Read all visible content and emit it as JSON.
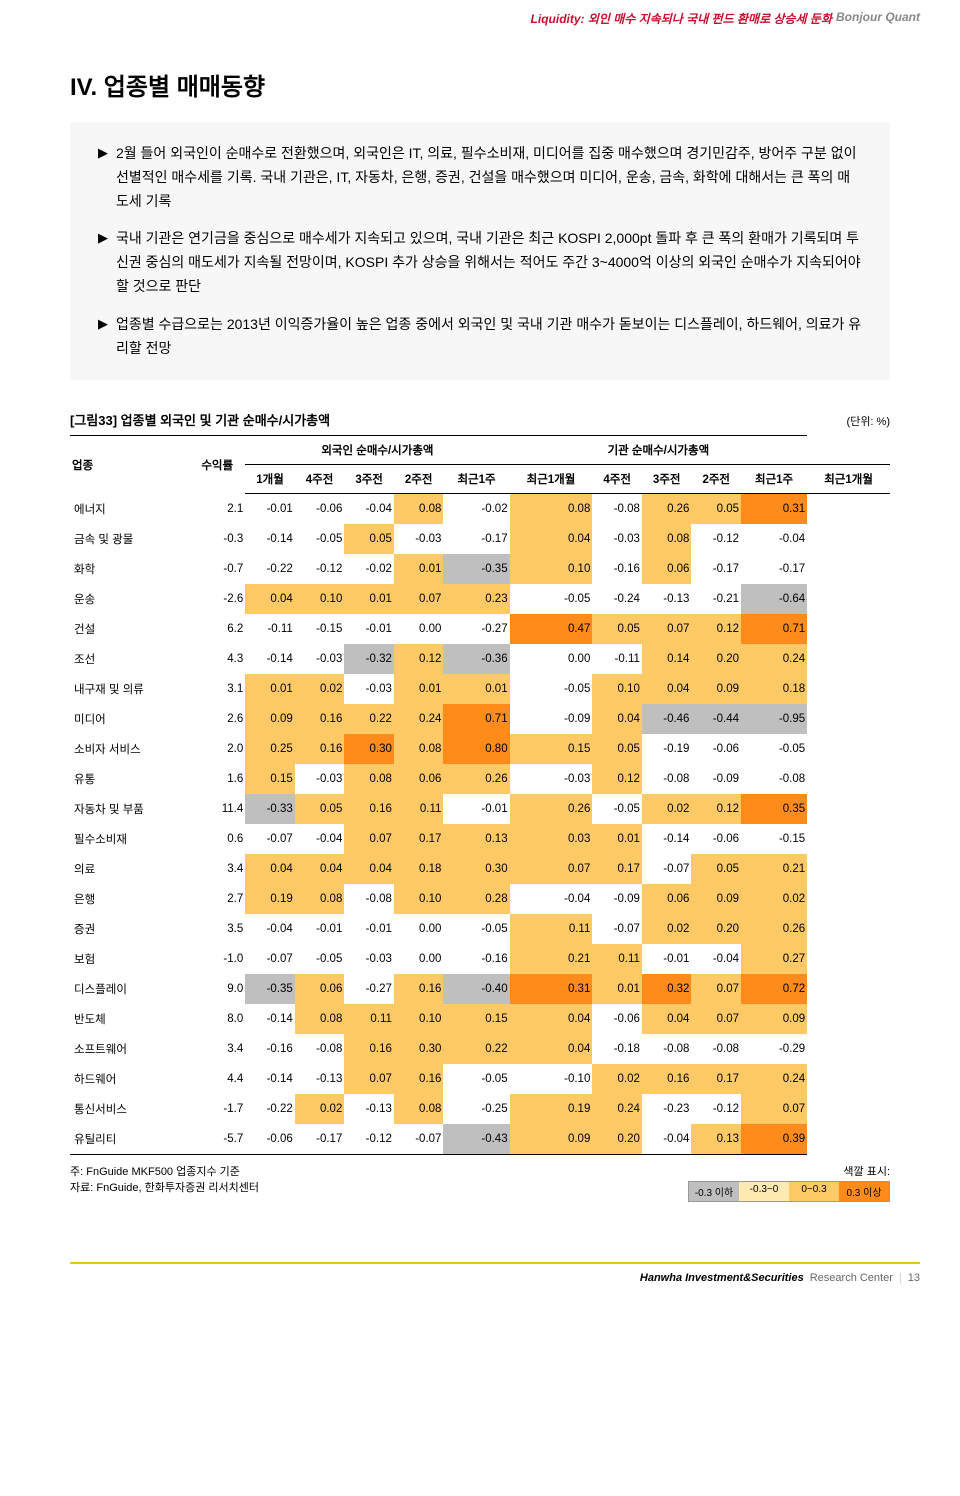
{
  "header": {
    "left": "Liquidity: 외인 매수 지속되나 국내 펀드 환매로 상승세 둔화",
    "right": "Bonjour Quant"
  },
  "section": {
    "title": "IV. 업종별 매매동향",
    "bullets": [
      "2월 들어 외국인이 순매수로 전환했으며, 외국인은 IT, 의료, 필수소비재, 미디어를 집중 매수했으며 경기민감주, 방어주 구분 없이 선별적인 매수세를 기록. 국내 기관은, IT, 자동차, 은행, 증권, 건설을 매수했으며 미디어, 운송, 금속, 화학에 대해서는 큰 폭의 매도세 기록",
      "국내 기관은 연기금을 중심으로 매수세가 지속되고 있으며, 국내 기관은 최근 KOSPI 2,000pt 돌파 후 큰 폭의 환매가 기록되며 투신권 중심의 매도세가 지속될 전망이며, KOSPI 추가 상승을 위해서는 적어도 주간 3~4000억 이상의 외국인 순매수가 지속되어야 할 것으로 판단",
      "업종별 수급으로는 2013년 이익증가율이 높은 업종 중에서 외국인 및 국내 기관 매수가 돋보이는 디스플레이, 하드웨어, 의료가 유리할 전망"
    ]
  },
  "table": {
    "caption": "[그림33]  업종별 외국인 및 기관 순매수/시가총액",
    "unit": "(단위: %)",
    "head1": {
      "c0": "업종",
      "c1": "수익률",
      "c2": "외국인 순매수/시가총액",
      "c3": "기관 순매수/시가총액"
    },
    "head2": {
      "c0": "1개월",
      "c1": "4주전",
      "c2": "3주전",
      "c3": "2주전",
      "c4": "최근1주",
      "c5": "최근1개월",
      "c6": "4주전",
      "c7": "3주전",
      "c8": "2주전",
      "c9": "최근1주",
      "c10": "최근1개월"
    },
    "colors": {
      "neg_strong": "#bfbfbf",
      "neg_weak": "#ffe9b3",
      "pos_weak": "#ffc966",
      "pos_strong": "#ff8c1a",
      "none": "transparent"
    },
    "rows": [
      {
        "label": "에너지",
        "v": [
          "2.1",
          "-0.01",
          "-0.06",
          "-0.04",
          "0.08",
          "-0.02",
          "0.08",
          "-0.08",
          "0.26",
          "0.05",
          "0.31"
        ],
        "c": [
          "",
          "",
          "",
          "",
          "pos_weak",
          "",
          "pos_weak",
          "",
          "pos_weak",
          "pos_weak",
          "pos_strong"
        ]
      },
      {
        "label": "금속 및 광물",
        "v": [
          "-0.3",
          "-0.14",
          "-0.05",
          "0.05",
          "-0.03",
          "-0.17",
          "0.04",
          "-0.03",
          "0.08",
          "-0.12",
          "-0.04"
        ],
        "c": [
          "",
          "",
          "",
          "pos_weak",
          "",
          "",
          "pos_weak",
          "",
          "pos_weak",
          "",
          ""
        ]
      },
      {
        "label": "화학",
        "v": [
          "-0.7",
          "-0.22",
          "-0.12",
          "-0.02",
          "0.01",
          "-0.35",
          "0.10",
          "-0.16",
          "0.06",
          "-0.17",
          "-0.17"
        ],
        "c": [
          "",
          "",
          "",
          "",
          "pos_weak",
          "neg_strong",
          "pos_weak",
          "",
          "pos_weak",
          "",
          ""
        ]
      },
      {
        "label": "운송",
        "v": [
          "-2.6",
          "0.04",
          "0.10",
          "0.01",
          "0.07",
          "0.23",
          "-0.05",
          "-0.24",
          "-0.13",
          "-0.21",
          "-0.64"
        ],
        "c": [
          "",
          "pos_weak",
          "pos_weak",
          "pos_weak",
          "pos_weak",
          "pos_weak",
          "",
          "",
          "",
          "",
          "neg_strong"
        ]
      },
      {
        "label": "건설",
        "v": [
          "6.2",
          "-0.11",
          "-0.15",
          "-0.01",
          "0.00",
          "-0.27",
          "0.47",
          "0.05",
          "0.07",
          "0.12",
          "0.71"
        ],
        "c": [
          "",
          "",
          "",
          "",
          "",
          "",
          "pos_strong",
          "pos_weak",
          "pos_weak",
          "pos_weak",
          "pos_strong"
        ]
      },
      {
        "label": "조선",
        "v": [
          "4.3",
          "-0.14",
          "-0.03",
          "-0.32",
          "0.12",
          "-0.36",
          "0.00",
          "-0.11",
          "0.14",
          "0.20",
          "0.24"
        ],
        "c": [
          "",
          "",
          "",
          "neg_strong",
          "pos_weak",
          "neg_strong",
          "",
          "",
          "pos_weak",
          "pos_weak",
          "pos_weak"
        ]
      },
      {
        "label": "내구재 및 의류",
        "v": [
          "3.1",
          "0.01",
          "0.02",
          "-0.03",
          "0.01",
          "0.01",
          "-0.05",
          "0.10",
          "0.04",
          "0.09",
          "0.18"
        ],
        "c": [
          "",
          "pos_weak",
          "pos_weak",
          "",
          "pos_weak",
          "pos_weak",
          "",
          "pos_weak",
          "pos_weak",
          "pos_weak",
          "pos_weak"
        ]
      },
      {
        "label": "미디어",
        "v": [
          "2.6",
          "0.09",
          "0.16",
          "0.22",
          "0.24",
          "0.71",
          "-0.09",
          "0.04",
          "-0.46",
          "-0.44",
          "-0.95"
        ],
        "c": [
          "",
          "pos_weak",
          "pos_weak",
          "pos_weak",
          "pos_weak",
          "pos_strong",
          "",
          "pos_weak",
          "neg_strong",
          "neg_strong",
          "neg_strong"
        ]
      },
      {
        "label": "소비자 서비스",
        "v": [
          "2.0",
          "0.25",
          "0.16",
          "0.30",
          "0.08",
          "0.80",
          "0.15",
          "0.05",
          "-0.19",
          "-0.06",
          "-0.05"
        ],
        "c": [
          "",
          "pos_weak",
          "pos_weak",
          "pos_strong",
          "pos_weak",
          "pos_strong",
          "pos_weak",
          "pos_weak",
          "",
          "",
          ""
        ]
      },
      {
        "label": "유통",
        "v": [
          "1.6",
          "0.15",
          "-0.03",
          "0.08",
          "0.06",
          "0.26",
          "-0.03",
          "0.12",
          "-0.08",
          "-0.09",
          "-0.08"
        ],
        "c": [
          "",
          "pos_weak",
          "",
          "pos_weak",
          "pos_weak",
          "pos_weak",
          "",
          "pos_weak",
          "",
          "",
          ""
        ]
      },
      {
        "label": "자동차 및 부품",
        "v": [
          "11.4",
          "-0.33",
          "0.05",
          "0.16",
          "0.11",
          "-0.01",
          "0.26",
          "-0.05",
          "0.02",
          "0.12",
          "0.35"
        ],
        "c": [
          "",
          "neg_strong",
          "pos_weak",
          "pos_weak",
          "pos_weak",
          "",
          "pos_weak",
          "",
          "pos_weak",
          "pos_weak",
          "pos_strong"
        ]
      },
      {
        "label": "필수소비재",
        "v": [
          "0.6",
          "-0.07",
          "-0.04",
          "0.07",
          "0.17",
          "0.13",
          "0.03",
          "0.01",
          "-0.14",
          "-0.06",
          "-0.15"
        ],
        "c": [
          "",
          "",
          "",
          "pos_weak",
          "pos_weak",
          "pos_weak",
          "pos_weak",
          "pos_weak",
          "",
          "",
          ""
        ]
      },
      {
        "label": "의료",
        "v": [
          "3.4",
          "0.04",
          "0.04",
          "0.04",
          "0.18",
          "0.30",
          "0.07",
          "0.17",
          "-0.07",
          "0.05",
          "0.21"
        ],
        "c": [
          "",
          "pos_weak",
          "pos_weak",
          "pos_weak",
          "pos_weak",
          "pos_weak",
          "pos_weak",
          "pos_weak",
          "",
          "pos_weak",
          "pos_weak"
        ]
      },
      {
        "label": "은행",
        "v": [
          "2.7",
          "0.19",
          "0.08",
          "-0.08",
          "0.10",
          "0.28",
          "-0.04",
          "-0.09",
          "0.06",
          "0.09",
          "0.02"
        ],
        "c": [
          "",
          "pos_weak",
          "pos_weak",
          "",
          "pos_weak",
          "pos_weak",
          "",
          "",
          "pos_weak",
          "pos_weak",
          "pos_weak"
        ]
      },
      {
        "label": "증권",
        "v": [
          "3.5",
          "-0.04",
          "-0.01",
          "-0.01",
          "0.00",
          "-0.05",
          "0.11",
          "-0.07",
          "0.02",
          "0.20",
          "0.26"
        ],
        "c": [
          "",
          "",
          "",
          "",
          "",
          "",
          "pos_weak",
          "",
          "pos_weak",
          "pos_weak",
          "pos_weak"
        ]
      },
      {
        "label": "보험",
        "v": [
          "-1.0",
          "-0.07",
          "-0.05",
          "-0.03",
          "0.00",
          "-0.16",
          "0.21",
          "0.11",
          "-0.01",
          "-0.04",
          "0.27"
        ],
        "c": [
          "",
          "",
          "",
          "",
          "",
          "",
          "pos_weak",
          "pos_weak",
          "",
          "",
          "pos_weak"
        ]
      },
      {
        "label": "디스플레이",
        "v": [
          "9.0",
          "-0.35",
          "0.06",
          "-0.27",
          "0.16",
          "-0.40",
          "0.31",
          "0.01",
          "0.32",
          "0.07",
          "0.72"
        ],
        "c": [
          "",
          "neg_strong",
          "pos_weak",
          "",
          "pos_weak",
          "neg_strong",
          "pos_strong",
          "pos_weak",
          "pos_strong",
          "pos_weak",
          "pos_strong"
        ]
      },
      {
        "label": "반도체",
        "v": [
          "8.0",
          "-0.14",
          "0.08",
          "0.11",
          "0.10",
          "0.15",
          "0.04",
          "-0.06",
          "0.04",
          "0.07",
          "0.09"
        ],
        "c": [
          "",
          "",
          "pos_weak",
          "pos_weak",
          "pos_weak",
          "pos_weak",
          "pos_weak",
          "",
          "pos_weak",
          "pos_weak",
          "pos_weak"
        ]
      },
      {
        "label": "소프트웨어",
        "v": [
          "3.4",
          "-0.16",
          "-0.08",
          "0.16",
          "0.30",
          "0.22",
          "0.04",
          "-0.18",
          "-0.08",
          "-0.08",
          "-0.29"
        ],
        "c": [
          "",
          "",
          "",
          "pos_weak",
          "pos_weak",
          "pos_weak",
          "pos_weak",
          "",
          "",
          "",
          ""
        ]
      },
      {
        "label": "하드웨어",
        "v": [
          "4.4",
          "-0.14",
          "-0.13",
          "0.07",
          "0.16",
          "-0.05",
          "-0.10",
          "0.02",
          "0.16",
          "0.17",
          "0.24"
        ],
        "c": [
          "",
          "",
          "",
          "pos_weak",
          "pos_weak",
          "",
          "",
          "pos_weak",
          "pos_weak",
          "pos_weak",
          "pos_weak"
        ]
      },
      {
        "label": "통신서비스",
        "v": [
          "-1.7",
          "-0.22",
          "0.02",
          "-0.13",
          "0.08",
          "-0.25",
          "0.19",
          "0.24",
          "-0.23",
          "-0.12",
          "0.07"
        ],
        "c": [
          "",
          "",
          "pos_weak",
          "",
          "pos_weak",
          "",
          "pos_weak",
          "pos_weak",
          "",
          "",
          "pos_weak"
        ]
      },
      {
        "label": "유틸리티",
        "v": [
          "-5.7",
          "-0.06",
          "-0.17",
          "-0.12",
          "-0.07",
          "-0.43",
          "0.09",
          "0.20",
          "-0.04",
          "0.13",
          "0.39"
        ],
        "c": [
          "",
          "",
          "",
          "",
          "",
          "neg_strong",
          "pos_weak",
          "pos_weak",
          "",
          "pos_weak",
          "pos_strong"
        ]
      }
    ],
    "footnote1": "주: FnGuide MKF500 업종지수 기준",
    "footnote2": "자료: FnGuide, 한화투자증권 리서치센터",
    "legend": {
      "title": "색깔 표시:",
      "cells": [
        {
          "label": "-0.3 이하",
          "color": "#bfbfbf"
        },
        {
          "label": "-0.3~0",
          "color": "#ffe9b3"
        },
        {
          "label": "0~0.3",
          "color": "#ffc966"
        },
        {
          "label": "0.3 이상",
          "color": "#ff8c1a"
        }
      ]
    }
  },
  "footer": {
    "brand": "Hanwha Investment&Securities",
    "research": "Research Center",
    "page": "13"
  }
}
